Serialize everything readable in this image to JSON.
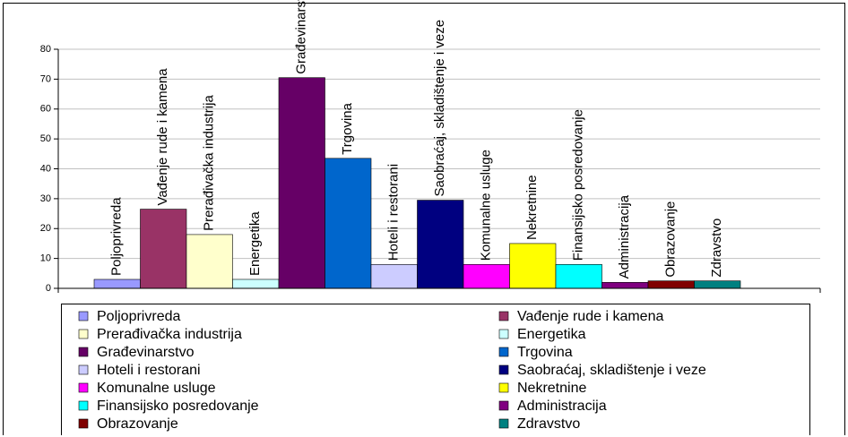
{
  "chart_data": {
    "type": "bar",
    "categories": [
      "Poljoprivreda",
      "Vađenje rude i kamena",
      "Prerađivačka industrija",
      "Energetika",
      "Građevinarstvo",
      "Trgovina",
      "Hoteli i restorani",
      "Saobraćaj, skladištenje i veze",
      "Komunalne usluge",
      "Nekretnine",
      "Finansijsko posredovanje",
      "Administracija",
      "Obrazovanje",
      "Zdravstvo"
    ],
    "values": [
      3,
      26.5,
      18,
      3,
      70.5,
      43.5,
      8,
      29.5,
      8,
      15,
      8,
      2,
      2.5,
      2.5
    ],
    "colors": [
      "#9999ff",
      "#993366",
      "#ffffcc",
      "#ccffff",
      "#660066",
      "#0066cc",
      "#ccccff",
      "#000080",
      "#ff00ff",
      "#ffff00",
      "#00ffff",
      "#800080",
      "#800000",
      "#008080"
    ],
    "ylim": [
      0,
      80
    ],
    "yticks": [
      0,
      10,
      20,
      30,
      40,
      50,
      60,
      70,
      80
    ],
    "grid": true,
    "legend": "bottom"
  }
}
